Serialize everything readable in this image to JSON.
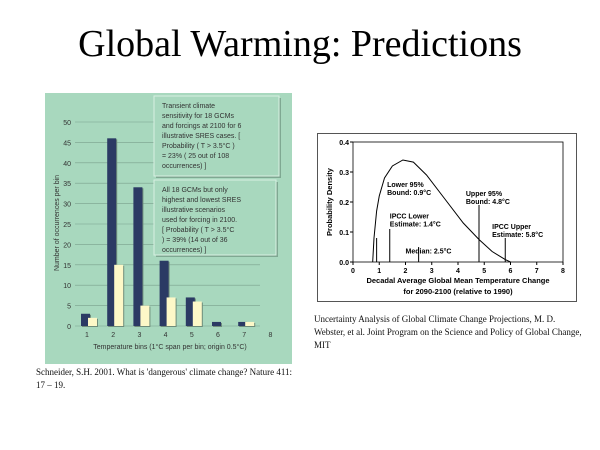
{
  "slide": {
    "title": "Global Warming: Predictions"
  },
  "captions": {
    "left": "Schneider, S.H. 2001. What is 'dangerous' climate change? Nature 411: 17 – 19.",
    "right": "Uncertainty Analysis of Global Climate Change Projections, M. D. Webster, et al. Joint Program on the Science and Policy of Global Change, MIT"
  },
  "chart_data": [
    {
      "type": "bar",
      "categories": [
        "1",
        "2",
        "3",
        "4",
        "5",
        "6",
        "7",
        "8"
      ],
      "series": [
        {
          "name": "Transient climate sensitivity, 6 SRES cases",
          "color": "#2b3a64",
          "values": [
            3,
            46,
            34,
            16,
            7,
            1,
            1,
            0
          ]
        },
        {
          "name": "Highest and lowest SRES scenarios",
          "color": "#fdf8c8",
          "values": [
            2,
            15,
            5,
            7,
            6,
            0,
            1,
            0
          ]
        }
      ],
      "yticks": [
        0,
        5,
        10,
        15,
        20,
        25,
        30,
        35,
        40,
        45,
        50
      ],
      "ylim": [
        0,
        52
      ],
      "xlabel": "Temperature bins (1°C span per bin; origin 0.5°C)",
      "ylabel": "Number of occurrences per bin",
      "annotations": [
        "Transient climate sensitivity for 18 GCMs and forcings at 2100 for 6 illustrative SRES cases. [ Probability ( T > 3.5°C ) = 23% ( 25 out of 108 occurrences) ]",
        "All 18 GCMs but only highest and lowest SRES illustrative scenarios used for forcing in 2100. [ Probability ( T > 3.5°C ) = 39% (14 out of 36 occurrences) ]"
      ]
    },
    {
      "type": "line",
      "xlim": [
        0,
        8
      ],
      "ylim": [
        0,
        0.4
      ],
      "xticks": [
        0,
        1,
        2,
        3,
        4,
        5,
        6,
        7,
        8
      ],
      "yticks": [
        "0.0",
        "0.1",
        "0.2",
        "0.3",
        "0.4"
      ],
      "xlabel": "Decadal Average Global Mean Temperature Change",
      "xlabel2": "for 2090-2100 (relative to 1990)",
      "ylabel": "Probability Density",
      "curve": [
        [
          0.75,
          0
        ],
        [
          0.8,
          0.08
        ],
        [
          0.9,
          0.17
        ],
        [
          1.0,
          0.22
        ],
        [
          1.2,
          0.28
        ],
        [
          1.5,
          0.32
        ],
        [
          1.9,
          0.34
        ],
        [
          2.3,
          0.333
        ],
        [
          2.8,
          0.29
        ],
        [
          3.5,
          0.21
        ],
        [
          4.2,
          0.13
        ],
        [
          4.8,
          0.075
        ],
        [
          5.3,
          0.035
        ],
        [
          5.8,
          0.008
        ],
        [
          6.0,
          0
        ]
      ],
      "markers": [
        {
          "x": 0.9,
          "top": 0.08,
          "l1": "Lower 95%",
          "l2": "Bound: 0.9°C",
          "lx": 1.3,
          "ly": 0.25
        },
        {
          "x": 1.4,
          "top": 0.11,
          "l1": "IPCC Lower",
          "l2": "Estimate: 1.4°C",
          "lx": 1.4,
          "ly": 0.145
        },
        {
          "x": 2.5,
          "top": 0.05,
          "l1": "",
          "l2": "Median: 2.5°C",
          "lx": 2.0,
          "ly": 0.055
        },
        {
          "x": 4.8,
          "top": 0.19,
          "l1": "Upper 95%",
          "l2": "Bound: 4.8°C",
          "lx": 4.3,
          "ly": 0.22
        },
        {
          "x": 5.8,
          "top": 0.08,
          "l1": "IPCC Upper",
          "l2": "Estimate: 5.8°C",
          "lx": 5.3,
          "ly": 0.11
        }
      ]
    }
  ]
}
